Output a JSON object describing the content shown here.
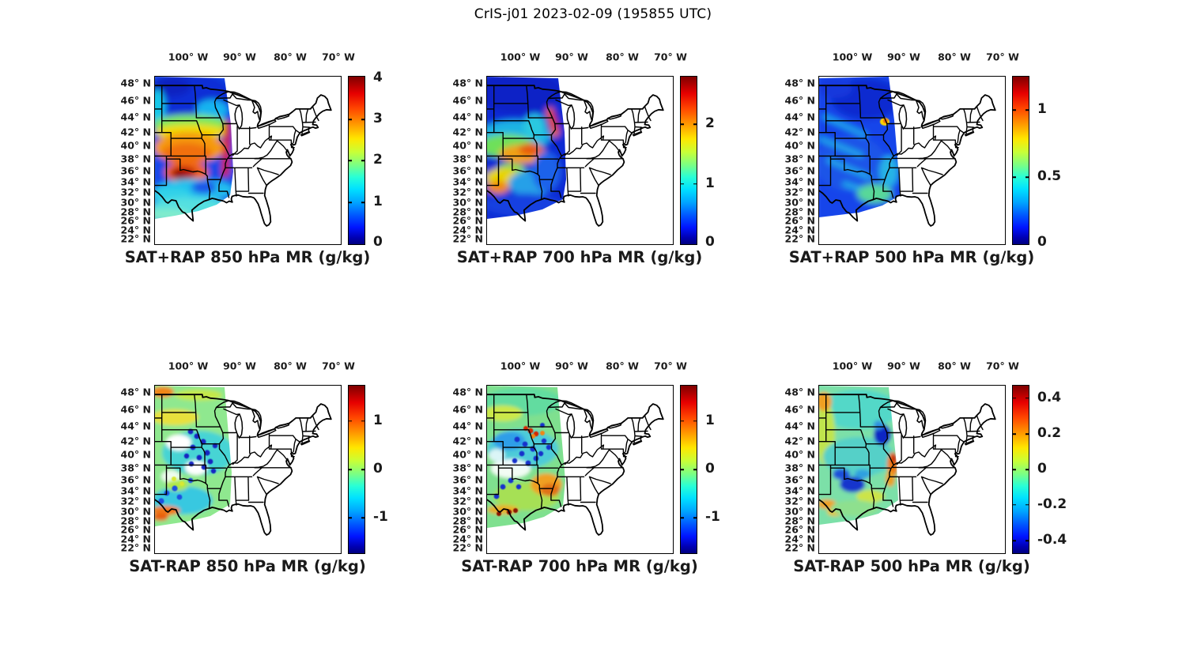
{
  "figure": {
    "title": "CrIS-j01 2023-02-09 (195855 UTC)"
  },
  "axes": {
    "lon_labels": [
      "100° W",
      "90° W",
      "80° W",
      "70° W"
    ],
    "lat_labels": [
      "48° N",
      "46° N",
      "44° N",
      "42° N",
      "40° N",
      "38° N",
      "36° N",
      "34° N",
      "32° N",
      "30° N",
      "28° N",
      "26° N",
      "24° N",
      "22° N"
    ]
  },
  "colors": {
    "background": "#ffffff",
    "map_line": "#000000",
    "jet_stops": [
      [
        "#7f0000",
        0
      ],
      [
        "#e60000",
        10
      ],
      [
        "#ff4600",
        19
      ],
      [
        "#ff9600",
        28
      ],
      [
        "#ffe600",
        37
      ],
      [
        "#c8ff37",
        45
      ],
      [
        "#78ff87",
        53
      ],
      [
        "#28ffd7",
        60
      ],
      [
        "#00e1ff",
        67
      ],
      [
        "#00a5ff",
        75
      ],
      [
        "#0055ff",
        83
      ],
      [
        "#0014ff",
        90
      ],
      [
        "#0000b4",
        96
      ],
      [
        "#00007f",
        100
      ]
    ]
  },
  "panels": [
    {
      "title": "SAT+RAP 850 hPa MR (g/kg)",
      "colorbar": {
        "min": 0,
        "max": 4,
        "ticks": [
          {
            "label": "4",
            "pos": 1
          },
          {
            "label": "3",
            "pos": 25.5
          },
          {
            "label": "2",
            "pos": 50
          },
          {
            "label": "1",
            "pos": 75
          },
          {
            "label": "0",
            "pos": 99
          }
        ]
      }
    },
    {
      "title": "SAT+RAP 700 hPa MR (g/kg)",
      "colorbar": {
        "min": 0,
        "max": 2.8,
        "ticks": [
          {
            "label": "2",
            "pos": 28.5
          },
          {
            "label": "1",
            "pos": 64
          },
          {
            "label": "0",
            "pos": 99
          }
        ]
      }
    },
    {
      "title": "SAT+RAP 500 hPa MR (g/kg)",
      "colorbar": {
        "min": 0,
        "max": 1.25,
        "ticks": [
          {
            "label": "1",
            "pos": 20
          },
          {
            "label": "0.5",
            "pos": 60
          },
          {
            "label": "0",
            "pos": 99
          }
        ]
      }
    },
    {
      "title": "SAT-RAP 850 hPa MR (g/kg)",
      "colorbar": {
        "min": -1.7,
        "max": 1.7,
        "ticks": [
          {
            "label": "1",
            "pos": 21
          },
          {
            "label": "0",
            "pos": 50
          },
          {
            "label": "-1",
            "pos": 79
          }
        ]
      }
    },
    {
      "title": "SAT-RAP 700 hPa MR (g/kg)",
      "colorbar": {
        "min": -1.7,
        "max": 1.7,
        "ticks": [
          {
            "label": "1",
            "pos": 21
          },
          {
            "label": "0",
            "pos": 50
          },
          {
            "label": "-1",
            "pos": 79
          }
        ]
      }
    },
    {
      "title": "SAT-RAP 500 hPa MR (g/kg)",
      "colorbar": {
        "min": -0.47,
        "max": 0.47,
        "ticks": [
          {
            "label": "0.4",
            "pos": 7.5
          },
          {
            "label": "0.2",
            "pos": 29
          },
          {
            "label": "0",
            "pos": 50
          },
          {
            "label": "-0.2",
            "pos": 71
          },
          {
            "label": "-0.4",
            "pos": 92.5
          }
        ]
      }
    }
  ],
  "chart_data": {
    "type": "heatmap",
    "figure_title": "CrIS-j01 2023-02-09 (195855 UTC)",
    "layout": "2 rows x 3 columns of geographic map panels (central/eastern United States) with jet-colormap satellite sounding swath over the Great Plains",
    "map_extent": {
      "lon_deg_w": [
        105.5,
        65
      ],
      "lat_deg_n": [
        22,
        50
      ]
    },
    "lon_ticks_deg_w": [
      100,
      90,
      80,
      70
    ],
    "lat_ticks_deg_n": [
      48,
      46,
      44,
      42,
      40,
      38,
      36,
      34,
      32,
      30,
      28,
      26,
      24,
      22
    ],
    "panels": [
      {
        "row": 1,
        "col": 1,
        "title": "SAT+RAP 850 hPa MR (g/kg)",
        "colorbar_range": [
          0,
          4
        ],
        "colorbar_ticks": [
          0,
          1,
          2,
          3,
          4
        ],
        "pattern": "swath over plains: dark blue (~0.5) northern plains, yellow-orange (2-3) Kansas/Nebraska, dark red (~4) New Mexico/Texas panhandle, red streak near 95W 38-42N, cyan (~1-1.5) southern edge"
      },
      {
        "row": 1,
        "col": 2,
        "title": "SAT+RAP 700 hPa MR (g/kg)",
        "colorbar_range": [
          0,
          2.8
        ],
        "colorbar_ticks": [
          0,
          1,
          2
        ],
        "pattern": "dark blue (<0.3) north half, orange diagonal streak near swath east edge 40-44N, orange blob (~2) central Kansas, yellow streaks New Mexico, blue south edge"
      },
      {
        "row": 1,
        "col": 3,
        "title": "SAT+RAP 500 hPa MR (g/kg)",
        "colorbar_range": [
          0,
          1.25
        ],
        "colorbar_ticks": [
          0,
          0.5,
          1
        ],
        "pattern": "mostly blue (<0.3) with cyan diagonal streaks, small orange spot (~1) near Iowa/Nebraska border, greenish patch near swath southeast edge"
      },
      {
        "row": 2,
        "col": 1,
        "title": "SAT-RAP 850 hPa MR (g/kg)",
        "colorbar_range": [
          -1.7,
          1.7
        ],
        "colorbar_ticks": [
          -1,
          0,
          1
        ],
        "pattern": "near-zero green north, scattered dark-blue negative dots (~-1.5) Nebraska/Kansas, cyan south-central, white data gaps, orange positive streaks (~+1) far southwest Texas"
      },
      {
        "row": 2,
        "col": 2,
        "title": "SAT-RAP 700 hPa MR (g/kg)",
        "colorbar_range": [
          -1.7,
          1.7
        ],
        "colorbar_ticks": [
          -1,
          0,
          1
        ],
        "pattern": "green near-zero north, blue negative dots cluster with a few red/orange positive dots near 43N, orange patch (~+1) eastern Oklahoma, dark red streaks (~+1.5) near 31N Texas"
      },
      {
        "row": 2,
        "col": 3,
        "title": "SAT-RAP 500 hPa MR (g/kg)",
        "colorbar_range": [
          -0.47,
          0.47
        ],
        "colorbar_ticks": [
          -0.4,
          -0.2,
          0,
          0.2,
          0.4
        ],
        "pattern": "green/cyan near-zero field, dark blue blob (~-0.45) western Iowa, orange-red streaks (~+0.4) along swath east edge 37-41N, blue patches Texas panhandle, orange spots far west edge"
      }
    ]
  }
}
